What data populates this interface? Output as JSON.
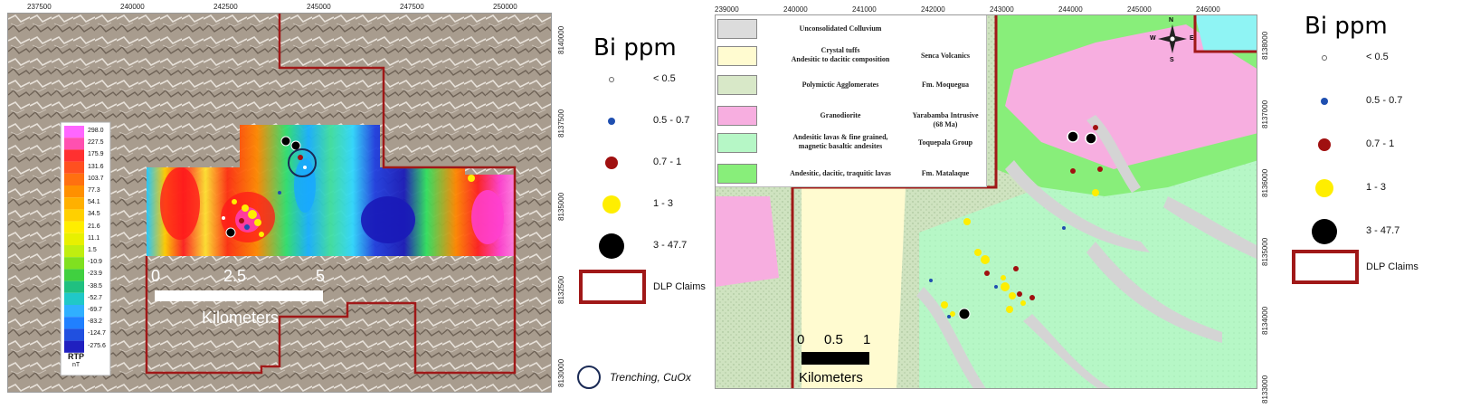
{
  "left_map": {
    "x_ticks": [
      "237500",
      "240000",
      "242500",
      "245000",
      "247500",
      "250000"
    ],
    "y_ticks": [
      "8140000",
      "8137500",
      "8135000",
      "8132500",
      "8130000"
    ],
    "rtp_scale": {
      "values": [
        "298.0",
        "227.5",
        "175.9",
        "131.6",
        "103.7",
        "77.3",
        "54.1",
        "34.5",
        "21.6",
        "11.1",
        "1.5",
        "-10.9",
        "-23.9",
        "-38.5",
        "-52.7",
        "-69.7",
        "-83.2",
        "-124.7",
        "-275.6"
      ],
      "title": "RTP",
      "unit": "nT"
    },
    "scale_bar": {
      "ticks": [
        "0",
        "2.5",
        "5"
      ],
      "unit": "Kilometers"
    }
  },
  "left_legend": {
    "title": "Bi ppm",
    "items": [
      {
        "label": "< 0.5",
        "color": "#ffffff"
      },
      {
        "label": "0.5 - 0.7",
        "color": "#1f4fb0"
      },
      {
        "label": "0.7 - 1",
        "color": "#a01010"
      },
      {
        "label": "1 - 3",
        "color": "#ffee00"
      },
      {
        "label": "3 - 47.7",
        "color": "#000000"
      }
    ],
    "claims_label": "DLP Claims",
    "trenching_label": "Trenching, CuOx"
  },
  "right_map": {
    "x_ticks": [
      "239000",
      "240000",
      "241000",
      "242000",
      "243000",
      "244000",
      "245000",
      "246000"
    ],
    "y_ticks": [
      "8138000",
      "8137000",
      "8136000",
      "8135000",
      "8134000",
      "8133000"
    ],
    "geology_legend": [
      {
        "label": "Unconsolidated Colluvium",
        "unit": "",
        "color": "#dcdcdc"
      },
      {
        "label": "Crystal tuffs\nAndesitic to dacitic composition",
        "unit": "Senca Volcanics",
        "color": "#fffbd0"
      },
      {
        "label": "Polymictic Agglomerates",
        "unit": "Fm. Moquegua",
        "color": "#d8e8c8"
      },
      {
        "label": "Granodiorite",
        "unit": "Yarabamba Intrusive\n(68 Ma)",
        "color": "#f7aee0"
      },
      {
        "label": "Andesitic lavas & fine grained,\nmagnetic basaltic andesites",
        "unit": "Toquepala Group",
        "color": "#b6f7c6"
      },
      {
        "label": "Andesitic, dacitic, traquitic lavas",
        "unit": "Fm. Matalaque",
        "color": "#88ee7a"
      }
    ],
    "scale_bar": {
      "ticks": [
        "0",
        "0.5",
        "1"
      ],
      "unit": "Kilometers"
    },
    "compass": {
      "n": "N",
      "s": "S",
      "e": "E",
      "w": "W"
    }
  },
  "right_legend": {
    "title": "Bi ppm",
    "items": [
      {
        "label": "< 0.5",
        "color": "#ffffff"
      },
      {
        "label": "0.5 - 0.7",
        "color": "#1f4fb0"
      },
      {
        "label": "0.7 - 1",
        "color": "#a01010"
      },
      {
        "label": "1 - 3",
        "color": "#ffee00"
      },
      {
        "label": "3 - 47.7",
        "color": "#000000"
      }
    ],
    "claims_label": "DLP Claims"
  }
}
